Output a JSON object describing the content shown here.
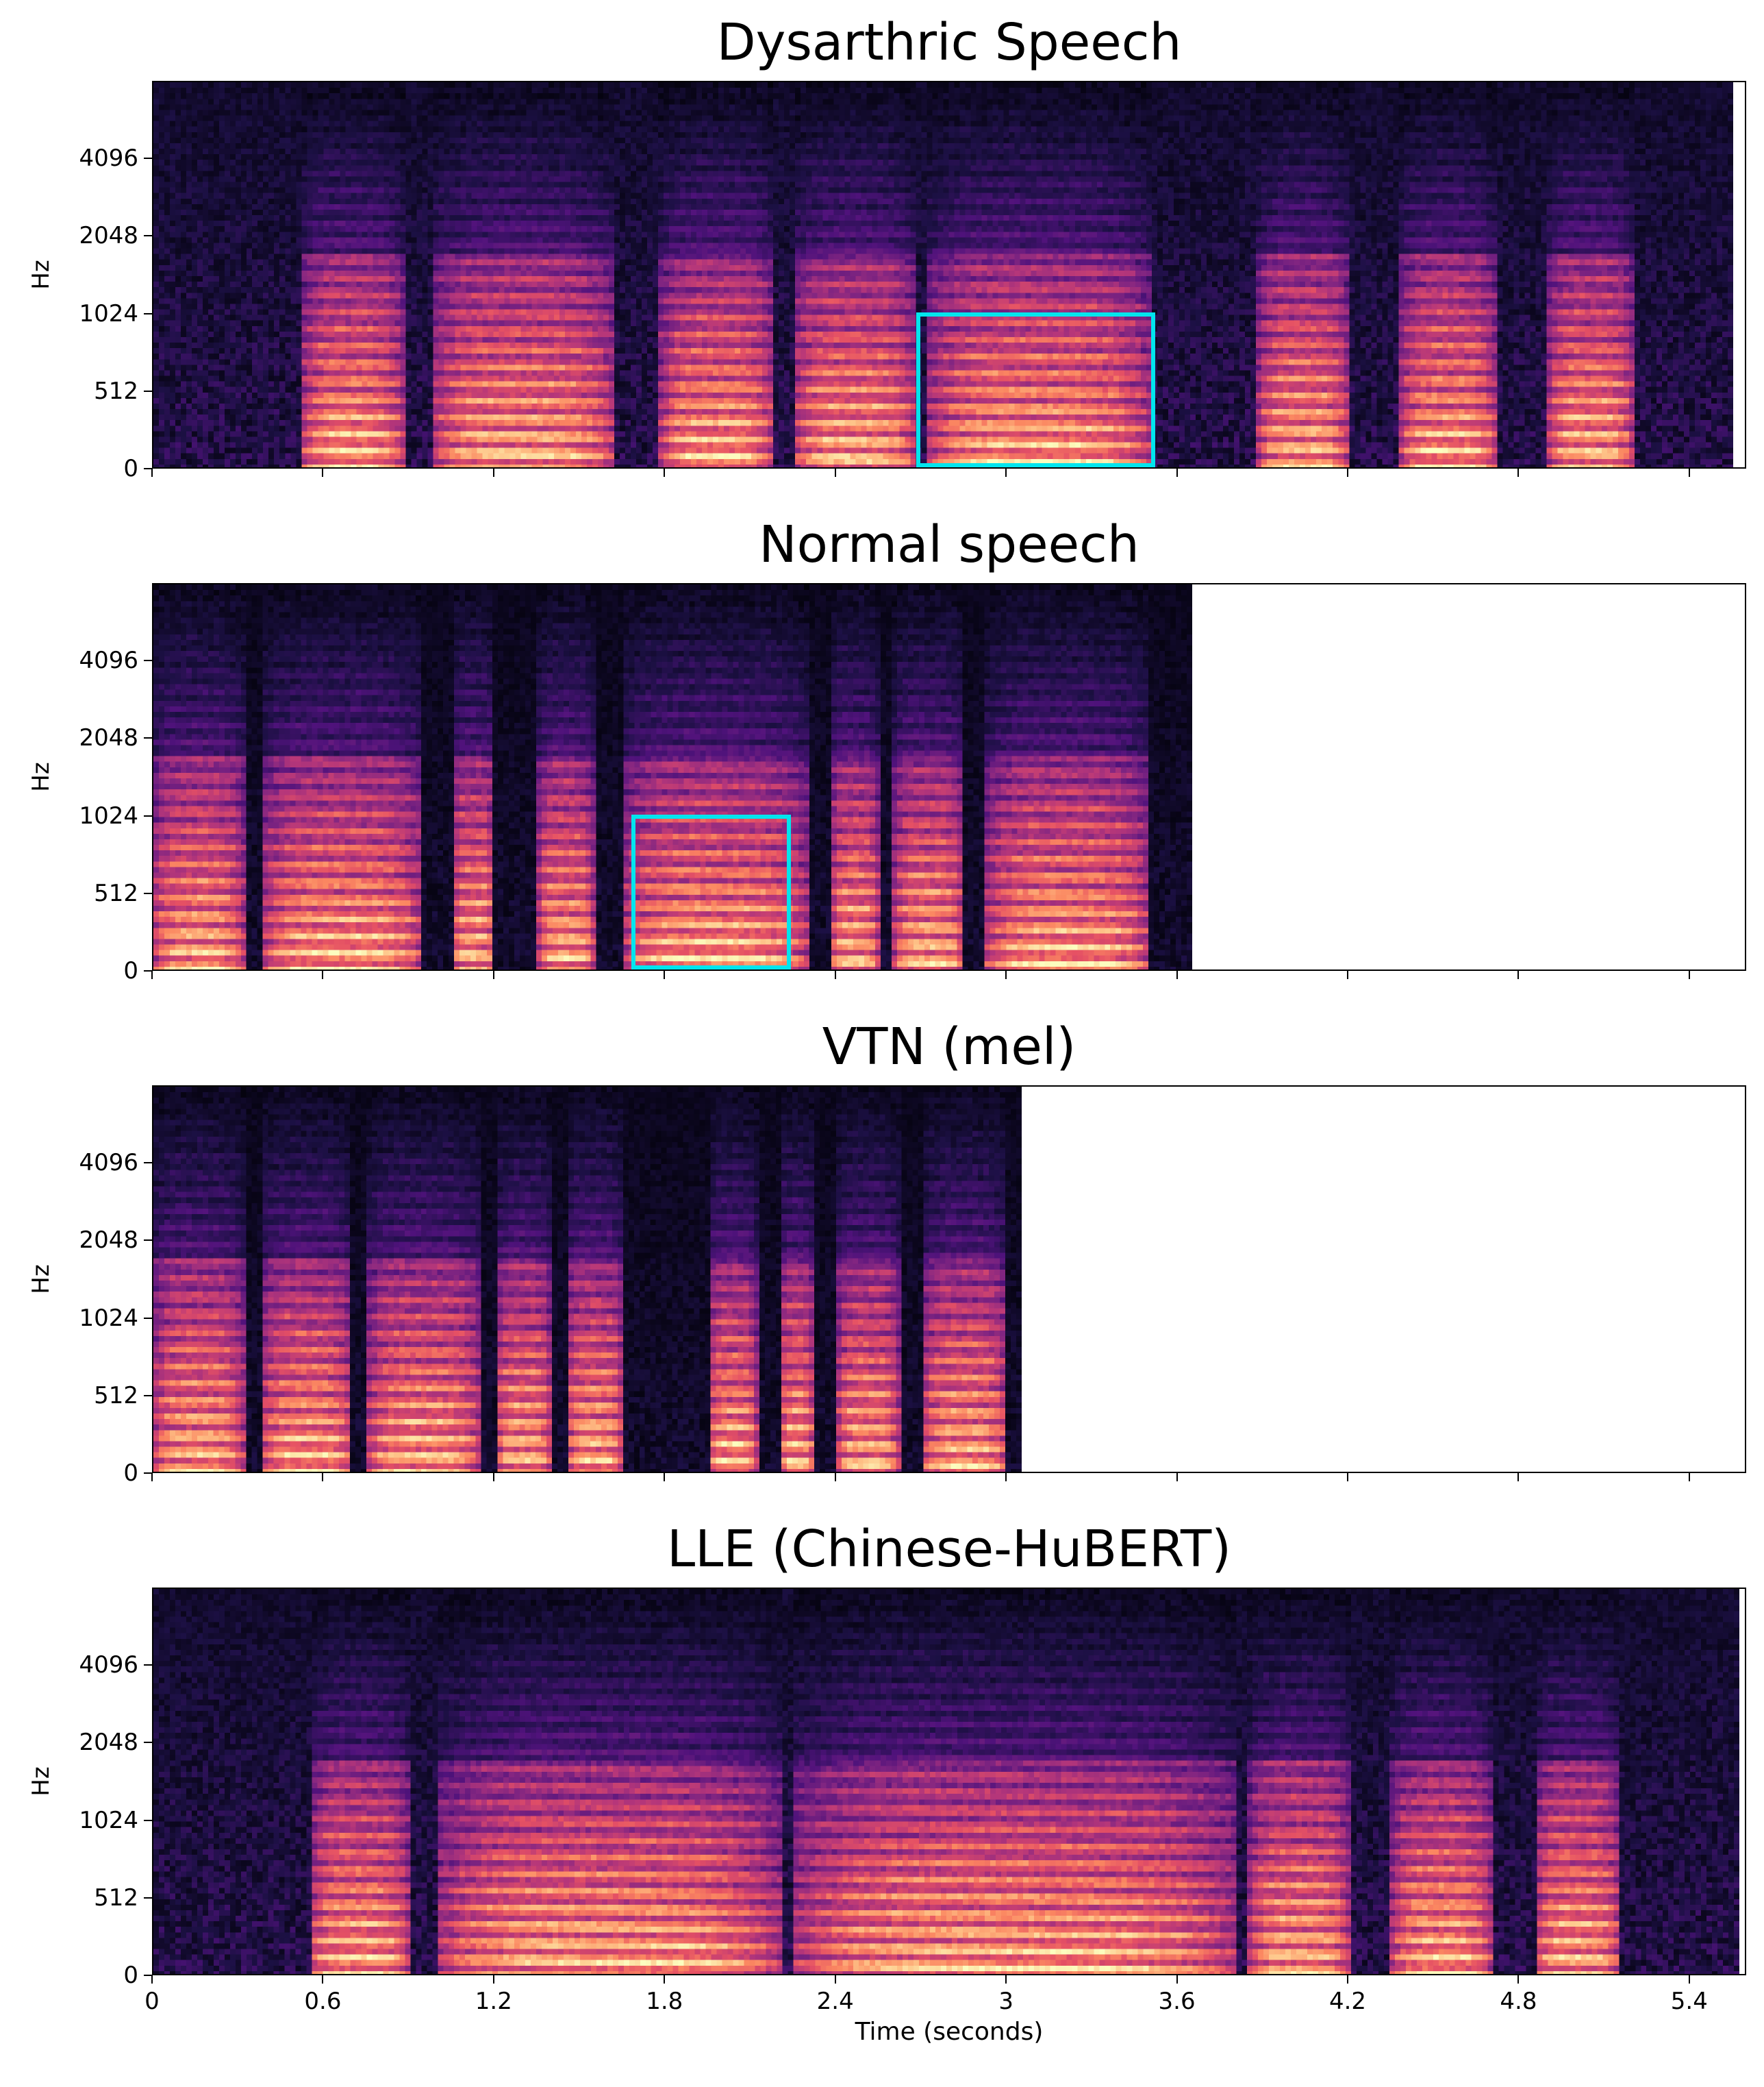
{
  "chart_data": [
    {
      "type": "heatmap",
      "title": "Dysarthric Speech",
      "ylabel": "Hz",
      "xlabel": "",
      "y_ticks": [
        "0",
        "512",
        "1024",
        "2048",
        "4096"
      ],
      "y_scale": "log-like (mel)",
      "x_range": [
        0,
        5.6
      ],
      "signal_end_seconds": 5.55,
      "highlight_box": {
        "x_range": [
          2.68,
          3.52
        ],
        "y_range_hz": [
          20,
          1050
        ]
      },
      "colormap": "magma",
      "segments": [
        [
          0.52,
          0.88
        ],
        [
          0.98,
          1.62
        ],
        [
          1.78,
          2.18
        ],
        [
          2.25,
          2.68
        ],
        [
          2.72,
          3.5
        ],
        [
          3.88,
          4.2
        ],
        [
          4.38,
          4.72
        ],
        [
          4.9,
          5.2
        ]
      ]
    },
    {
      "type": "heatmap",
      "title": "Normal speech",
      "ylabel": "Hz",
      "xlabel": "",
      "y_ticks": [
        "0",
        "512",
        "1024",
        "2048",
        "4096"
      ],
      "x_range": [
        0,
        5.6
      ],
      "signal_end_seconds": 3.65,
      "highlight_box": {
        "x_range": [
          1.68,
          2.24
        ],
        "y_range_hz": [
          20,
          1050
        ]
      },
      "colormap": "magma",
      "segments": [
        [
          0.0,
          0.32
        ],
        [
          0.38,
          0.95
        ],
        [
          1.05,
          1.2
        ],
        [
          1.35,
          1.55
        ],
        [
          1.65,
          2.3
        ],
        [
          2.38,
          2.55
        ],
        [
          2.6,
          2.85
        ],
        [
          2.92,
          3.5
        ]
      ]
    },
    {
      "type": "heatmap",
      "title": "VTN (mel)",
      "ylabel": "Hz",
      "xlabel": "",
      "y_ticks": [
        "0",
        "512",
        "1024",
        "2048",
        "4096"
      ],
      "x_range": [
        0,
        5.6
      ],
      "signal_end_seconds": 3.05,
      "highlight_box": null,
      "colormap": "magma",
      "segments": [
        [
          0.0,
          0.32
        ],
        [
          0.38,
          0.7
        ],
        [
          0.75,
          1.15
        ],
        [
          1.2,
          1.4
        ],
        [
          1.45,
          1.65
        ],
        [
          1.95,
          2.12
        ],
        [
          2.2,
          2.32
        ],
        [
          2.4,
          2.62
        ],
        [
          2.7,
          3.0
        ]
      ]
    },
    {
      "type": "heatmap",
      "title": "LLE (Chinese-HuBERT)",
      "ylabel": "Hz",
      "xlabel": "Time (seconds)",
      "y_ticks": [
        "0",
        "512",
        "1024",
        "2048",
        "4096"
      ],
      "x_ticks": [
        "0",
        "0.6",
        "1.2",
        "1.8",
        "2.4",
        "3",
        "3.6",
        "4.2",
        "4.8",
        "5.4"
      ],
      "x_range": [
        0,
        5.6
      ],
      "signal_end_seconds": 5.57,
      "highlight_box": null,
      "colormap": "magma",
      "segments": [
        [
          0.55,
          0.9
        ],
        [
          1.0,
          2.2
        ],
        [
          2.25,
          3.8
        ],
        [
          3.85,
          4.2
        ],
        [
          4.35,
          4.7
        ],
        [
          4.85,
          5.15
        ]
      ]
    }
  ]
}
